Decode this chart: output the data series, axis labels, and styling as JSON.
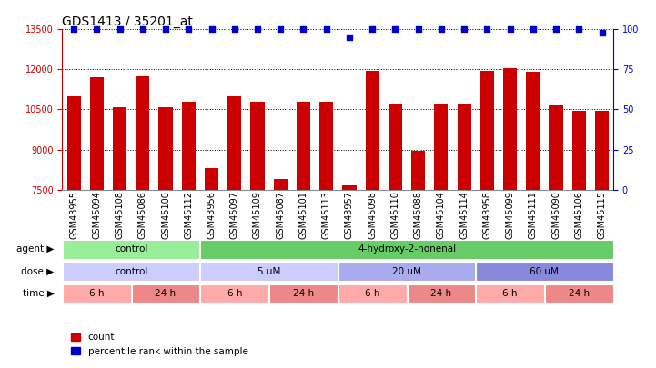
{
  "title": "GDS1413 / 35201_at",
  "samples": [
    "GSM43955",
    "GSM45094",
    "GSM45108",
    "GSM45086",
    "GSM45100",
    "GSM45112",
    "GSM43956",
    "GSM45097",
    "GSM45109",
    "GSM45087",
    "GSM45101",
    "GSM45113",
    "GSM43957",
    "GSM45098",
    "GSM45110",
    "GSM45088",
    "GSM45104",
    "GSM45114",
    "GSM43958",
    "GSM45099",
    "GSM45111",
    "GSM45090",
    "GSM45106",
    "GSM45115"
  ],
  "counts": [
    11000,
    11700,
    10600,
    11750,
    10600,
    10800,
    8300,
    11000,
    10800,
    7900,
    10800,
    10800,
    7650,
    11950,
    10700,
    8950,
    10700,
    10700,
    11950,
    12050,
    11900,
    10650,
    10450,
    10450
  ],
  "percentiles": [
    100,
    100,
    100,
    100,
    100,
    100,
    100,
    100,
    100,
    100,
    100,
    100,
    95,
    100,
    100,
    100,
    100,
    100,
    100,
    100,
    100,
    100,
    100,
    98
  ],
  "bar_color": "#cc0000",
  "dot_color": "#0000cc",
  "ylim": [
    7500,
    13500
  ],
  "yticks": [
    7500,
    9000,
    10500,
    12000,
    13500
  ],
  "right_yticks": [
    0,
    25,
    50,
    75,
    100
  ],
  "right_ylim": [
    0,
    100
  ],
  "agent_labels": [
    {
      "label": "control",
      "start": 0,
      "end": 6,
      "color": "#99ee99"
    },
    {
      "label": "4-hydroxy-2-nonenal",
      "start": 6,
      "end": 24,
      "color": "#66cc66"
    }
  ],
  "dose_labels": [
    {
      "label": "control",
      "start": 0,
      "end": 6,
      "color": "#ccccff"
    },
    {
      "label": "5 uM",
      "start": 6,
      "end": 12,
      "color": "#ccccff"
    },
    {
      "label": "20 uM",
      "start": 12,
      "end": 18,
      "color": "#aaaaee"
    },
    {
      "label": "60 uM",
      "start": 18,
      "end": 24,
      "color": "#8888dd"
    }
  ],
  "time_6h_color": "#ffaaaa",
  "time_24h_color": "#ee8888",
  "time_blocks": [
    {
      "label": "6 h",
      "start": 0,
      "end": 3
    },
    {
      "label": "24 h",
      "start": 3,
      "end": 6
    },
    {
      "label": "6 h",
      "start": 6,
      "end": 9
    },
    {
      "label": "24 h",
      "start": 9,
      "end": 12
    },
    {
      "label": "6 h",
      "start": 12,
      "end": 15
    },
    {
      "label": "24 h",
      "start": 15,
      "end": 18
    },
    {
      "label": "6 h",
      "start": 18,
      "end": 21
    },
    {
      "label": "24 h",
      "start": 21,
      "end": 24
    }
  ],
  "bg_color": "#ffffff",
  "tick_label_color_left": "#cc0000",
  "tick_label_color_right": "#0000cc",
  "title_fontsize": 10,
  "label_fontsize": 7,
  "annotation_fontsize": 7.5,
  "row_label_fontsize": 7.5
}
